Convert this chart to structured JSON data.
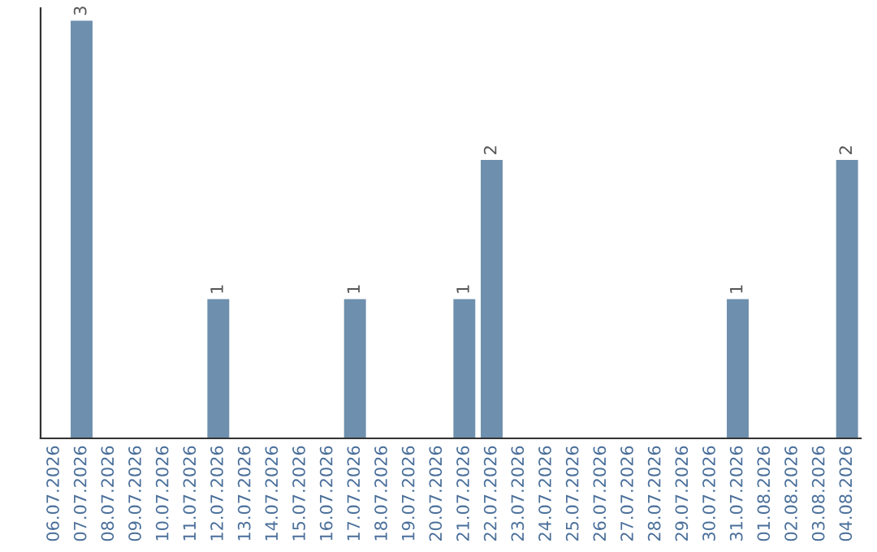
{
  "chart_data": {
    "type": "bar",
    "categories": [
      "06.07.2026",
      "07.07.2026",
      "08.07.2026",
      "09.07.2026",
      "10.07.2026",
      "11.07.2026",
      "12.07.2026",
      "13.07.2026",
      "14.07.2026",
      "15.07.2026",
      "16.07.2026",
      "17.07.2026",
      "18.07.2026",
      "19.07.2026",
      "20.07.2026",
      "21.07.2026",
      "22.07.2026",
      "23.07.2026",
      "24.07.2026",
      "25.07.2026",
      "26.07.2026",
      "27.07.2026",
      "28.07.2026",
      "29.07.2026",
      "30.07.2026",
      "31.07.2026",
      "01.08.2026",
      "02.08.2026",
      "03.08.2026",
      "04.08.2026"
    ],
    "values": [
      0,
      3,
      0,
      0,
      0,
      0,
      1,
      0,
      0,
      0,
      0,
      1,
      0,
      0,
      0,
      1,
      2,
      0,
      0,
      0,
      0,
      0,
      0,
      0,
      0,
      1,
      0,
      0,
      0,
      2
    ],
    "value_labels": [
      null,
      "3",
      null,
      null,
      null,
      null,
      "1",
      null,
      null,
      null,
      null,
      "1",
      null,
      null,
      null,
      "1",
      "2",
      null,
      null,
      null,
      null,
      null,
      null,
      null,
      null,
      "1",
      null,
      null,
      null,
      "2"
    ],
    "color": "#6e8fad",
    "grid": false,
    "legend": false
  }
}
